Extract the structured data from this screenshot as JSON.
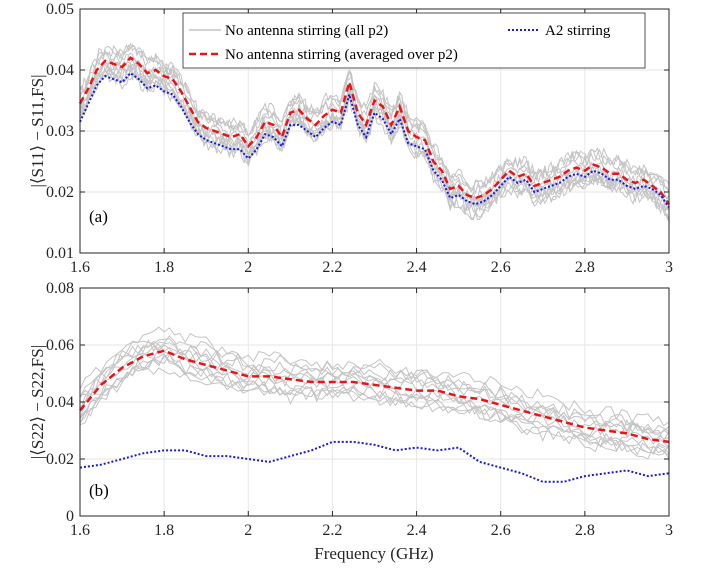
{
  "chart_data": [
    {
      "type": "line",
      "panel_label": "(a)",
      "xlabel": "",
      "ylabel": "|⟨S11⟩ − S11,FS|",
      "xlim": [
        1.6,
        3.0
      ],
      "ylim": [
        0.01,
        0.05
      ],
      "x_ticks": [
        "1.6",
        "1.8",
        "2",
        "2.2",
        "2.4",
        "2.6",
        "2.8",
        "3"
      ],
      "y_ticks": [
        "0.01",
        "0.02",
        "0.03",
        "0.04",
        "0.05"
      ],
      "grid": true,
      "legend_position": "top-right",
      "colors": {
        "no_stirring_all": "#c4c4c4",
        "averaged": "#e8141a",
        "a2": "#1a1ad8"
      },
      "x": [
        1.6,
        1.62,
        1.64,
        1.66,
        1.68,
        1.7,
        1.72,
        1.74,
        1.76,
        1.78,
        1.8,
        1.82,
        1.84,
        1.86,
        1.88,
        1.9,
        1.92,
        1.94,
        1.96,
        1.98,
        2.0,
        2.02,
        2.04,
        2.06,
        2.08,
        2.1,
        2.12,
        2.14,
        2.16,
        2.18,
        2.2,
        2.22,
        2.24,
        2.26,
        2.28,
        2.3,
        2.32,
        2.34,
        2.36,
        2.38,
        2.4,
        2.42,
        2.44,
        2.46,
        2.48,
        2.5,
        2.52,
        2.54,
        2.56,
        2.58,
        2.6,
        2.62,
        2.64,
        2.66,
        2.68,
        2.7,
        2.72,
        2.74,
        2.76,
        2.78,
        2.8,
        2.82,
        2.84,
        2.86,
        2.88,
        2.9,
        2.92,
        2.94,
        2.96,
        2.98,
        3.0
      ],
      "series": [
        {
          "name": "No antenna stirring (averaged over p2)",
          "style": "dashed",
          "values": [
            0.0345,
            0.037,
            0.04,
            0.0415,
            0.041,
            0.0405,
            0.042,
            0.041,
            0.0395,
            0.04,
            0.039,
            0.0385,
            0.0365,
            0.034,
            0.0315,
            0.0305,
            0.03,
            0.0295,
            0.029,
            0.0295,
            0.0275,
            0.029,
            0.0315,
            0.031,
            0.029,
            0.033,
            0.0335,
            0.032,
            0.031,
            0.0325,
            0.0335,
            0.033,
            0.038,
            0.033,
            0.031,
            0.035,
            0.034,
            0.031,
            0.034,
            0.03,
            0.029,
            0.0285,
            0.025,
            0.0235,
            0.0205,
            0.021,
            0.0195,
            0.019,
            0.0195,
            0.0205,
            0.022,
            0.0235,
            0.0225,
            0.023,
            0.021,
            0.0215,
            0.022,
            0.0225,
            0.0235,
            0.024,
            0.0235,
            0.0245,
            0.024,
            0.023,
            0.023,
            0.022,
            0.0215,
            0.022,
            0.021,
            0.02,
            0.018
          ]
        },
        {
          "name": "A2 stirring",
          "style": "dotted",
          "values": [
            0.0315,
            0.0345,
            0.0375,
            0.039,
            0.0385,
            0.038,
            0.0395,
            0.0385,
            0.037,
            0.0375,
            0.0365,
            0.036,
            0.034,
            0.0315,
            0.0295,
            0.0285,
            0.028,
            0.0275,
            0.027,
            0.027,
            0.0255,
            0.027,
            0.0295,
            0.029,
            0.0275,
            0.031,
            0.031,
            0.03,
            0.029,
            0.0305,
            0.0315,
            0.031,
            0.036,
            0.031,
            0.029,
            0.033,
            0.032,
            0.0295,
            0.032,
            0.028,
            0.0275,
            0.027,
            0.0235,
            0.022,
            0.019,
            0.0195,
            0.0185,
            0.018,
            0.0185,
            0.0195,
            0.021,
            0.0225,
            0.0215,
            0.022,
            0.02,
            0.0205,
            0.021,
            0.0215,
            0.0225,
            0.023,
            0.0225,
            0.0235,
            0.023,
            0.022,
            0.022,
            0.021,
            0.0205,
            0.021,
            0.0205,
            0.0195,
            0.0175
          ]
        }
      ]
    },
    {
      "type": "line",
      "panel_label": "(b)",
      "xlabel": "Frequency (GHz)",
      "ylabel": "|⟨S22⟩ − S22,FS|",
      "xlim": [
        1.6,
        3.0
      ],
      "ylim": [
        0,
        0.08
      ],
      "x_ticks": [
        "1.6",
        "1.8",
        "2",
        "2.2",
        "2.4",
        "2.6",
        "2.8",
        "3"
      ],
      "y_ticks": [
        "0",
        "0.02",
        "0.04",
        "0.06",
        "0.08"
      ],
      "grid": true,
      "colors": {
        "no_stirring_all": "#c4c4c4",
        "averaged": "#e8141a",
        "a2": "#1a1ad8"
      },
      "x": [
        1.6,
        1.65,
        1.7,
        1.75,
        1.8,
        1.85,
        1.9,
        1.95,
        2.0,
        2.05,
        2.1,
        2.15,
        2.2,
        2.25,
        2.3,
        2.35,
        2.4,
        2.45,
        2.5,
        2.55,
        2.6,
        2.65,
        2.7,
        2.75,
        2.8,
        2.85,
        2.9,
        2.95,
        3.0
      ],
      "series": [
        {
          "name": "No antenna stirring (averaged over p2)",
          "style": "dashed",
          "values": [
            0.037,
            0.046,
            0.052,
            0.056,
            0.058,
            0.055,
            0.053,
            0.051,
            0.049,
            0.049,
            0.048,
            0.047,
            0.047,
            0.047,
            0.046,
            0.045,
            0.044,
            0.044,
            0.042,
            0.041,
            0.039,
            0.037,
            0.035,
            0.033,
            0.031,
            0.03,
            0.029,
            0.027,
            0.026
          ]
        },
        {
          "name": "A2 stirring",
          "style": "dotted",
          "values": [
            0.017,
            0.018,
            0.02,
            0.022,
            0.023,
            0.023,
            0.021,
            0.021,
            0.02,
            0.019,
            0.021,
            0.023,
            0.026,
            0.026,
            0.025,
            0.023,
            0.024,
            0.023,
            0.024,
            0.019,
            0.017,
            0.015,
            0.012,
            0.012,
            0.014,
            0.015,
            0.016,
            0.014,
            0.015
          ]
        }
      ]
    }
  ],
  "legend": {
    "items": [
      {
        "label": "No antenna stirring (all p2)",
        "style": "solid-gray"
      },
      {
        "label": "A2 stirring",
        "style": "dotted-blue"
      },
      {
        "label": "No antenna stirring (averaged over p2)",
        "style": "dashed-red"
      }
    ]
  }
}
